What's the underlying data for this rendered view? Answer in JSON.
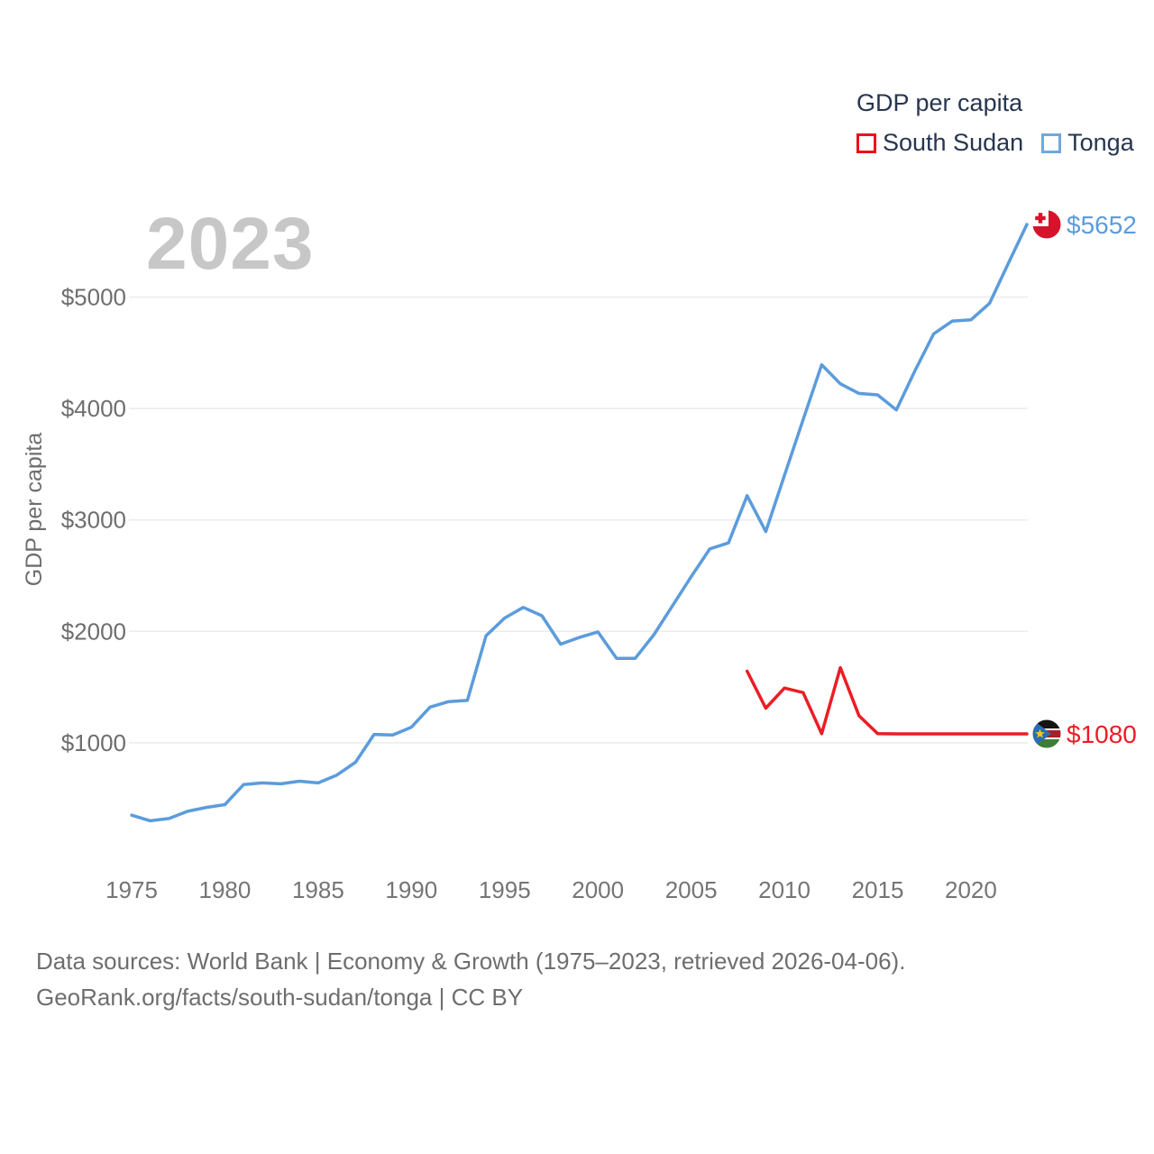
{
  "legend": {
    "title": "GDP per capita",
    "items": [
      {
        "label": "South Sudan",
        "swatch_color": "#e8131b"
      },
      {
        "label": "Tonga",
        "swatch_color": "#6fa8df"
      }
    ]
  },
  "watermark_year": "2023",
  "chart_data": {
    "type": "line",
    "title": "GDP per capita",
    "ylabel": "GDP per capita",
    "xlabel": "",
    "xlim": [
      1975,
      2023
    ],
    "ylim": [
      0,
      5800
    ],
    "grid": "horizontal gridlines only, no axis lines",
    "legend_position": "top-right",
    "x_ticks": [
      1975,
      1980,
      1985,
      1990,
      1995,
      2000,
      2005,
      2010,
      2015,
      2020
    ],
    "y_ticks": [
      1000,
      2000,
      3000,
      4000,
      5000
    ],
    "y_tick_labels": [
      "$1000",
      "$2000",
      "$3000",
      "$4000",
      "$5000"
    ],
    "gridline_color": "#ececec",
    "tick_label_color": "#757575",
    "series": [
      {
        "name": "Tonga",
        "color": "#5b9cdc",
        "flag": "tonga",
        "end_label": "$5652",
        "start_year": 1975,
        "values": [
          350,
          300,
          320,
          385,
          420,
          445,
          625,
          640,
          632,
          655,
          640,
          710,
          825,
          1075,
          1070,
          1140,
          1320,
          1370,
          1380,
          1960,
          2120,
          2215,
          2140,
          1885,
          1945,
          1995,
          1758,
          1758,
          1970,
          2230,
          2490,
          2740,
          2794,
          3218,
          2896,
          3400,
          3900,
          4392,
          4222,
          4135,
          4122,
          3987,
          4340,
          4670,
          4785,
          4795,
          4944,
          5300,
          5652
        ]
      },
      {
        "name": "South Sudan",
        "color": "#ed1c24",
        "flag": "south-sudan",
        "end_label": "$1080",
        "start_year": 2008,
        "values": [
          1642,
          1311,
          1491,
          1451,
          1082,
          1675,
          1243,
          1082,
          1080,
          1080,
          1080,
          1080,
          1080,
          1080,
          1080,
          1080
        ]
      }
    ]
  },
  "footer": {
    "line1": "Data sources: World Bank | Economy & Growth (1975–2023, retrieved 2026-04-06).",
    "line2": "GeoRank.org/facts/south-sudan/tonga | CC BY"
  }
}
